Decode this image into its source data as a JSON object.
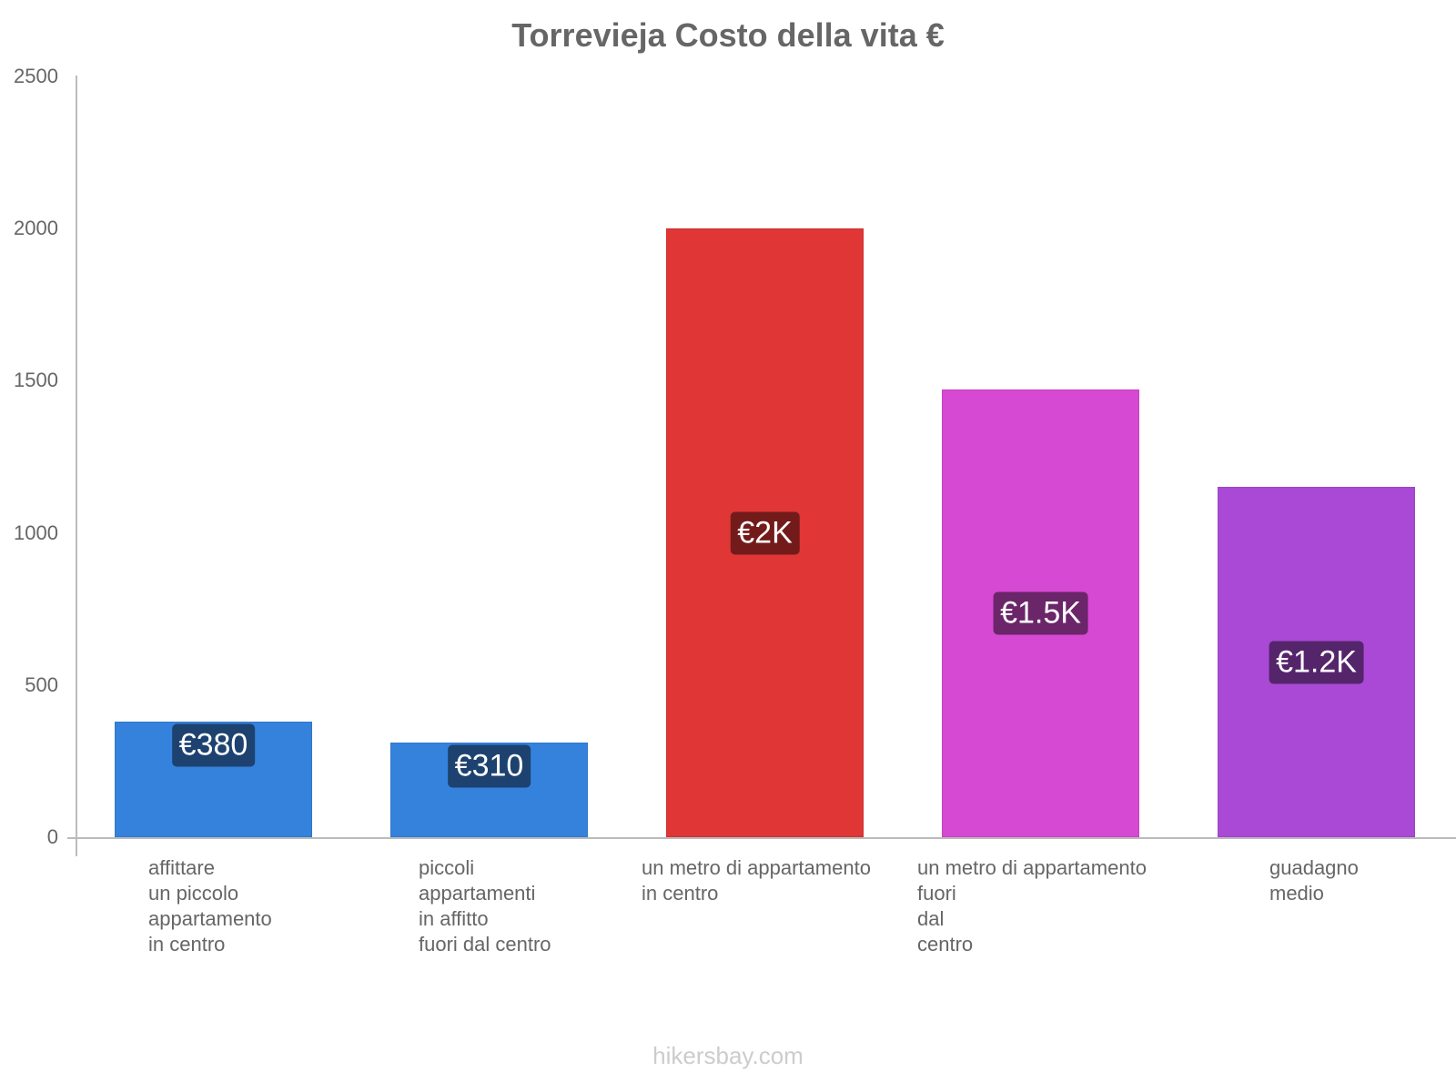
{
  "chart_data": {
    "type": "bar",
    "title": "Torrevieja Costo della vita €",
    "xlabel": "",
    "ylabel": "",
    "ylim": [
      0,
      2500
    ],
    "yticks": [
      0,
      500,
      1000,
      1500,
      2000,
      2500
    ],
    "grid": false,
    "legend": null,
    "categories": [
      "affittare un piccolo appartamento in centro",
      "piccoli appartamenti in affitto fuori dal centro",
      "un metro di appartamento in centro",
      "un metro di appartamento fuori dal centro",
      "guadagno medio"
    ],
    "values": [
      380,
      310,
      2000,
      1470,
      1150
    ],
    "data_labels": [
      "€380",
      "€310",
      "€2K",
      "€1.5K",
      "€1.2K"
    ],
    "colors": [
      "#3582dc",
      "#3582dc",
      "#e03636",
      "#d649d2",
      "#aa49d6"
    ],
    "label_colors": [
      "#1d426f",
      "#1d426f",
      "#731b1b",
      "#6b2569",
      "#55256b"
    ]
  },
  "labels": {
    "title": "Torrevieja Costo della vita €",
    "yticks": [
      "2500",
      "2000",
      "1500",
      "1000",
      "500",
      "0"
    ],
    "x": [
      "affittare\nun piccolo\nappartamento\nin centro",
      "piccoli\nappartamenti\nin affitto\nfuori dal centro",
      "un metro di appartamento\nin centro",
      "un metro di appartamento\nfuori\ndal\ncentro",
      "guadagno\nmedio"
    ],
    "values": [
      "€380",
      "€310",
      "€2K",
      "€1.5K",
      "€1.2K"
    ]
  },
  "footer": {
    "watermark": "hikersbay.com"
  }
}
